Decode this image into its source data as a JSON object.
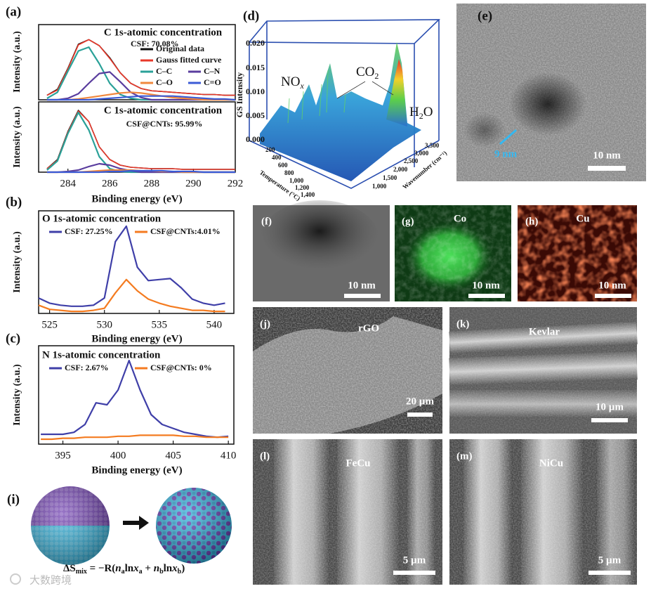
{
  "chart_data": [
    {
      "type": "line",
      "panel_label": "(a)",
      "title": "C 1s-atomic concentration",
      "subtitle": "CSF: 70.08%",
      "ylabel": "Intensity (a.u.)",
      "xlim": [
        282.6,
        292
      ],
      "ylim": [
        0,
        1
      ],
      "x": [
        283,
        283.5,
        284,
        284.5,
        285,
        285.5,
        286,
        286.5,
        287,
        287.5,
        288,
        288.5,
        289,
        289.5,
        290,
        290.5,
        291,
        291.5,
        292
      ],
      "series": [
        {
          "name": "Original data",
          "color": "#111111",
          "values": [
            0.06,
            0.14,
            0.42,
            0.74,
            0.8,
            0.72,
            0.56,
            0.36,
            0.22,
            0.15,
            0.12,
            0.11,
            0.1,
            0.09,
            0.08,
            0.07,
            0.07,
            0.06,
            0.06
          ]
        },
        {
          "name": "Gauss fitted curve",
          "color": "#e8382a",
          "values": [
            0.06,
            0.13,
            0.41,
            0.73,
            0.8,
            0.72,
            0.55,
            0.36,
            0.22,
            0.15,
            0.12,
            0.11,
            0.1,
            0.09,
            0.08,
            0.07,
            0.07,
            0.06,
            0.06
          ]
        },
        {
          "name": "C–C",
          "color": "#2aa198",
          "values": [
            0.02,
            0.1,
            0.38,
            0.65,
            0.7,
            0.48,
            0.22,
            0.07,
            0.02,
            0,
            0,
            0,
            0,
            0,
            0,
            0,
            0,
            0,
            0
          ]
        },
        {
          "name": "C–N",
          "color": "#5a3d9e",
          "values": [
            0,
            0,
            0.02,
            0.08,
            0.22,
            0.35,
            0.37,
            0.24,
            0.1,
            0.03,
            0,
            0,
            0,
            0,
            0,
            0,
            0,
            0,
            0
          ]
        },
        {
          "name": "C–O",
          "color": "#f0883e",
          "values": [
            0,
            0,
            0,
            0.01,
            0.03,
            0.05,
            0.07,
            0.09,
            0.1,
            0.09,
            0.07,
            0.05,
            0.03,
            0.02,
            0.01,
            0,
            0,
            0,
            0
          ]
        },
        {
          "name": "C=O",
          "color": "#3b5bd6",
          "values": [
            0,
            0,
            0,
            0,
            0,
            0.01,
            0.02,
            0.03,
            0.04,
            0.05,
            0.05,
            0.05,
            0.05,
            0.04,
            0.03,
            0.02,
            0.01,
            0.01,
            0
          ]
        }
      ]
    },
    {
      "type": "line",
      "title": "C 1s-atomic concentration",
      "subtitle": "CSF@CNTs: 95.99%",
      "ylabel": "Intensity (a.u.)",
      "xlabel": "Binding energy (eV)",
      "xlim": [
        282.6,
        292
      ],
      "ylim": [
        0,
        1
      ],
      "xticks": [
        284,
        286,
        288,
        290,
        292
      ],
      "x": [
        283,
        283.5,
        284,
        284.5,
        285,
        285.5,
        286,
        286.5,
        287,
        287.5,
        288,
        288.5,
        289,
        289.5,
        290,
        290.5,
        291,
        291.5,
        292
      ],
      "series": [
        {
          "color": "#111111",
          "values": [
            0.05,
            0.18,
            0.58,
            0.88,
            0.72,
            0.36,
            0.18,
            0.1,
            0.07,
            0.06,
            0.05,
            0.05,
            0.05,
            0.04,
            0.04,
            0.04,
            0.04,
            0.04,
            0.04
          ]
        },
        {
          "color": "#e8382a",
          "values": [
            0.05,
            0.17,
            0.57,
            0.87,
            0.72,
            0.36,
            0.18,
            0.1,
            0.07,
            0.06,
            0.05,
            0.05,
            0.05,
            0.04,
            0.04,
            0.04,
            0.04,
            0.04,
            0.04
          ]
        },
        {
          "color": "#2aa198",
          "values": [
            0.03,
            0.16,
            0.55,
            0.85,
            0.6,
            0.22,
            0.05,
            0.01,
            0,
            0,
            0,
            0,
            0,
            0,
            0,
            0,
            0,
            0,
            0
          ]
        },
        {
          "color": "#5a3d9e",
          "values": [
            0,
            0,
            0.01,
            0.03,
            0.08,
            0.12,
            0.1,
            0.05,
            0.02,
            0,
            0,
            0,
            0,
            0,
            0,
            0,
            0,
            0,
            0
          ]
        },
        {
          "color": "#f0883e",
          "values": [
            0,
            0,
            0,
            0,
            0.01,
            0.02,
            0.03,
            0.03,
            0.03,
            0.02,
            0.02,
            0.01,
            0.01,
            0,
            0,
            0,
            0,
            0,
            0
          ]
        },
        {
          "color": "#3b5bd6",
          "values": [
            0,
            0,
            0,
            0,
            0,
            0,
            0.01,
            0.01,
            0.02,
            0.02,
            0.02,
            0.02,
            0.01,
            0.01,
            0.01,
            0,
            0,
            0,
            0
          ]
        }
      ]
    },
    {
      "type": "line",
      "panel_label": "(b)",
      "title": "O 1s-atomic concentration",
      "ylabel": "Intensity (a.u.)",
      "xlabel": "Binding energy (eV)",
      "xlim": [
        524,
        541.8
      ],
      "ylim": [
        0,
        1
      ],
      "xticks": [
        525,
        530,
        535,
        540
      ],
      "x": [
        524,
        525,
        526,
        527,
        528,
        529,
        530,
        531,
        532,
        533,
        534,
        535,
        536,
        537,
        538,
        539,
        540,
        541
      ],
      "series": [
        {
          "name": "CSF: 27.25%",
          "color": "#3f3fa8",
          "values": [
            0.15,
            0.1,
            0.08,
            0.07,
            0.07,
            0.08,
            0.15,
            0.7,
            0.85,
            0.45,
            0.32,
            0.33,
            0.34,
            0.25,
            0.14,
            0.1,
            0.08,
            0.1
          ]
        },
        {
          "name": "CSF@CNTs:4.01%",
          "color": "#f47b20",
          "values": [
            0.08,
            0.04,
            0.03,
            0.02,
            0.02,
            0.03,
            0.05,
            0.2,
            0.33,
            0.22,
            0.14,
            0.1,
            0.07,
            0.05,
            0.03,
            0.03,
            0.02,
            0.02
          ]
        }
      ]
    },
    {
      "type": "line",
      "panel_label": "(c)",
      "title": "N 1s-atomic concentration",
      "ylabel": "Intensity (a.u.)",
      "xlabel": "Binding energy (eV)",
      "xlim": [
        392.8,
        410.5
      ],
      "ylim": [
        0,
        1
      ],
      "xticks": [
        395,
        400,
        405,
        410
      ],
      "x": [
        393,
        394,
        395,
        396,
        397,
        398,
        399,
        400,
        401,
        402,
        403,
        404,
        405,
        406,
        407,
        408,
        409,
        410
      ],
      "series": [
        {
          "name": "CSF: 2.67%",
          "color": "#3f3fa8",
          "values": [
            0.1,
            0.1,
            0.1,
            0.12,
            0.2,
            0.42,
            0.4,
            0.55,
            0.85,
            0.55,
            0.3,
            0.2,
            0.16,
            0.12,
            0.1,
            0.08,
            0.07,
            0.08
          ]
        },
        {
          "name": "CSF@CNTs: 0%",
          "color": "#f47b20",
          "values": [
            0.05,
            0.05,
            0.06,
            0.06,
            0.07,
            0.07,
            0.07,
            0.08,
            0.08,
            0.09,
            0.09,
            0.09,
            0.09,
            0.08,
            0.08,
            0.07,
            0.07,
            0.07
          ]
        }
      ]
    }
  ],
  "panels": {
    "d": {
      "label": "(d)",
      "zlabel": "GS Intensity",
      "zticks": [
        "0.020",
        "0.015",
        "0.010",
        "0.005",
        "0.000"
      ],
      "tlabel": "Temperature (°C)",
      "tticks": [
        "200",
        "400",
        "600",
        "800",
        "1,000",
        "1,200",
        "1,400"
      ],
      "wlabel": "Wavenumber (cm⁻¹)",
      "wticks": [
        "1,000",
        "1,500",
        "2,000",
        "2,500",
        "3,000",
        "3,500"
      ],
      "no": [
        "NO",
        "x"
      ],
      "co": [
        "CO",
        "2"
      ],
      "h2o": [
        "H",
        "2",
        "O"
      ]
    },
    "e": {
      "label": "(e)",
      "size": "9 nm",
      "scale": "10 nm"
    },
    "f": {
      "label": "(f)",
      "scale": "10 nm"
    },
    "g": {
      "label": "(g)",
      "element": "Co",
      "scale": "10 nm"
    },
    "h": {
      "label": "(h)",
      "element": "Cu",
      "scale": "10 nm"
    },
    "i": {
      "label": "(i)",
      "equation": [
        "ΔS",
        "mix",
        " = −R(",
        "n",
        "a",
        "ln",
        "x",
        "a",
        " + ",
        "n",
        "b",
        "ln",
        "x",
        "b",
        ")"
      ]
    },
    "j": {
      "label": "(j)",
      "name": "rGO",
      "scale": "20 µm"
    },
    "k": {
      "label": "(k)",
      "name": "Kevlar",
      "scale": "10 µm"
    },
    "l": {
      "label": "(l)",
      "name": "FeCu",
      "scale": "5 µm"
    },
    "m": {
      "label": "(m)",
      "name": "NiCu",
      "scale": "5 µm"
    },
    "watermark": "大数跨境"
  }
}
